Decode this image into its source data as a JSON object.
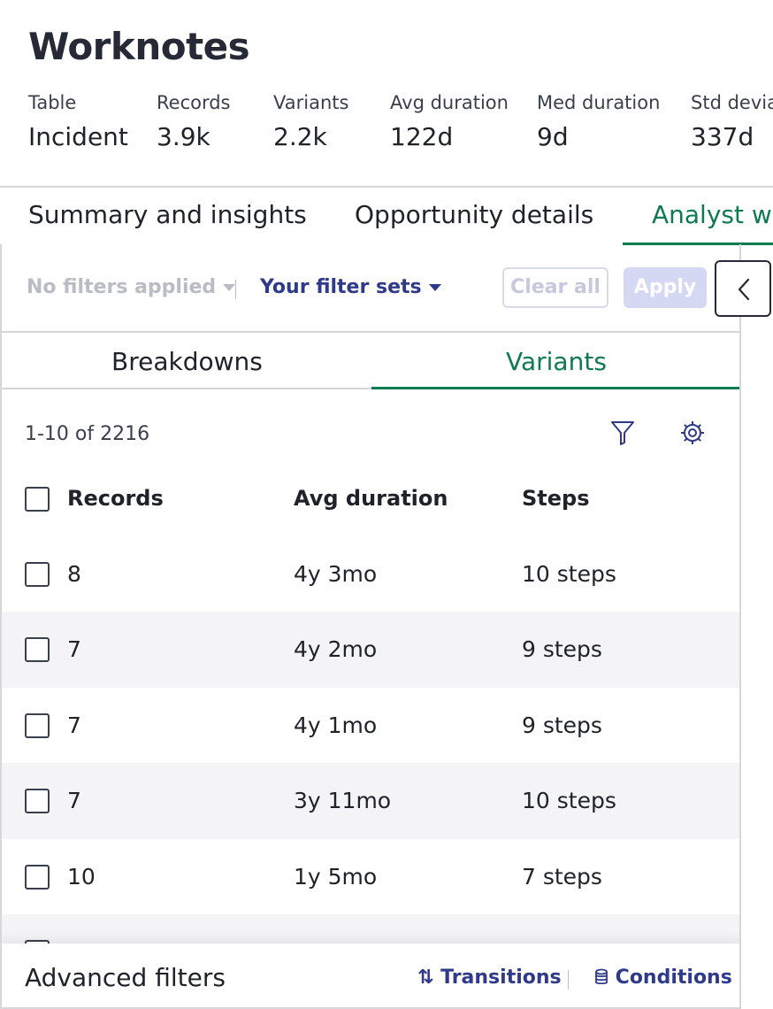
{
  "page": {
    "title": "Worknotes",
    "stats": [
      {
        "label": "Table",
        "value": "Incident"
      },
      {
        "label": "Records",
        "value": "3.9k"
      },
      {
        "label": "Variants",
        "value": "2.2k"
      },
      {
        "label": "Avg duration",
        "value": "122d"
      },
      {
        "label": "Med duration",
        "value": "9d"
      },
      {
        "label": "Std devia",
        "value": "337d"
      }
    ]
  },
  "tabs": [
    {
      "label": "Summary and insights",
      "active": false
    },
    {
      "label": "Opportunity details",
      "active": false
    },
    {
      "label": "Analyst w",
      "active": true
    }
  ],
  "filters": {
    "no_filters": "No filters applied",
    "filter_sets": "Your filter sets",
    "clear_label": "Clear all",
    "apply_label": "Apply"
  },
  "subtabs": [
    {
      "label": "Breakdowns",
      "active": false
    },
    {
      "label": "Variants",
      "active": true
    }
  ],
  "table": {
    "count": "1-10 of 2216",
    "columns": [
      "Records",
      "Avg duration",
      "Steps"
    ],
    "rows": [
      {
        "records": "8",
        "avg_duration": "4y 3mo",
        "steps": "10 steps"
      },
      {
        "records": "7",
        "avg_duration": "4y 2mo",
        "steps": "9 steps"
      },
      {
        "records": "7",
        "avg_duration": "4y 1mo",
        "steps": "9 steps"
      },
      {
        "records": "7",
        "avg_duration": "3y 11mo",
        "steps": "10 steps"
      },
      {
        "records": "10",
        "avg_duration": "1y 5mo",
        "steps": "7 steps"
      }
    ]
  },
  "advanced": {
    "title": "Advanced filters",
    "transitions": "Transitions",
    "conditions": "Conditions"
  },
  "colors": {
    "accent_green": "#0d7a50",
    "link_blue": "#2f3a8a",
    "apply_disabled": "#d5d8f2"
  }
}
